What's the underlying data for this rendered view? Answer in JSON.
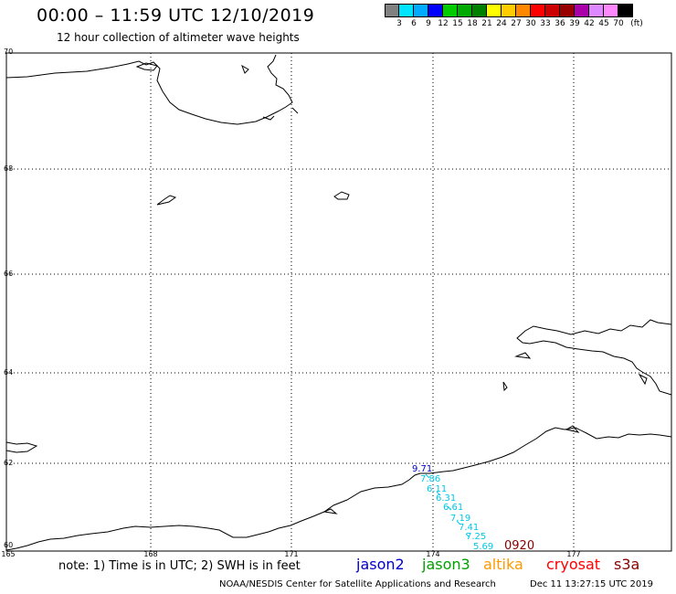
{
  "title": "00:00 – 11:59 UTC 12/10/2019",
  "subtitle": "12 hour collection of altimeter wave heights",
  "colorbar": {
    "colors": [
      "#808080",
      "#00e5ff",
      "#00aaff",
      "#0000ff",
      "#00cc00",
      "#00aa00",
      "#008000",
      "#ffff00",
      "#ffcc00",
      "#ff8800",
      "#ff0000",
      "#cc0000",
      "#990000",
      "#aa00aa",
      "#dd88ff",
      "#ff88ff",
      "#000000"
    ],
    "labels": [
      "3",
      "6",
      "9",
      "12",
      "15",
      "18",
      "21",
      "24",
      "27",
      "30",
      "33",
      "36",
      "39",
      "42",
      "45",
      "70",
      "(ft)"
    ]
  },
  "map": {
    "lat_labels": [
      "70",
      "68",
      "66",
      "64",
      "62",
      "60"
    ],
    "lon_labels": [
      "165",
      "168",
      "171",
      "174",
      "177"
    ],
    "gridlines": true
  },
  "wave_heights": [
    {
      "value": "9.71",
      "color": "#0000cc"
    },
    {
      "value": "7.86",
      "color": "#00c8e6"
    },
    {
      "value": "6.11",
      "color": "#00c8e6"
    },
    {
      "value": "6.31",
      "color": "#00c8e6"
    },
    {
      "value": "6.61",
      "color": "#00c8e6"
    },
    {
      "value": "7.19",
      "color": "#00c8e6"
    },
    {
      "value": "7.41",
      "color": "#00c8e6"
    },
    {
      "value": "7.25",
      "color": "#00c8e6"
    },
    {
      "value": "5.69",
      "color": "#00c8e6"
    }
  ],
  "pass_time": "0920",
  "note": "note: 1) Time is in UTC; 2) SWH is in feet",
  "satellites": [
    {
      "name": "jason2",
      "color": "#0000cc"
    },
    {
      "name": "jason3",
      "color": "#00a000"
    },
    {
      "name": "altika",
      "color": "#ff9900"
    },
    {
      "name": "cryosat",
      "color": "#ff0000"
    },
    {
      "name": "s3a",
      "color": "#8b0000"
    }
  ],
  "credit": "NOAA/NESDIS Center for Satellite Applications and Research",
  "generated": "Dec 11 13:27:15 UTC 2019"
}
